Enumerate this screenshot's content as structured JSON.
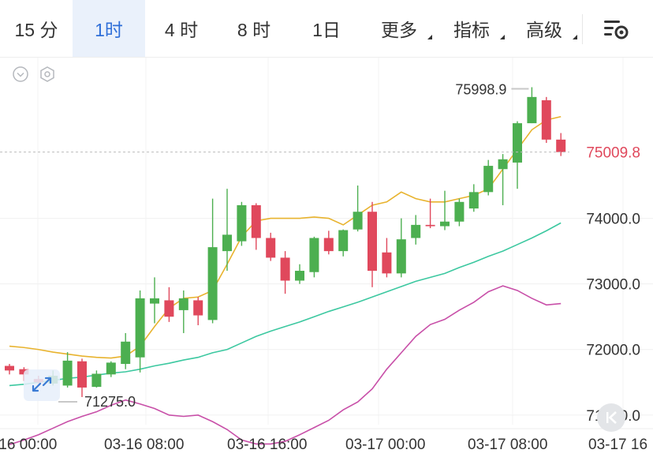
{
  "tabs": [
    {
      "label": "15 分",
      "active": false,
      "has_menu": false
    },
    {
      "label": "1时",
      "active": true,
      "has_menu": false
    },
    {
      "label": "4 时",
      "active": false,
      "has_menu": false
    },
    {
      "label": "8 时",
      "active": false,
      "has_menu": false
    },
    {
      "label": "1日",
      "active": false,
      "has_menu": false
    },
    {
      "label": "更多",
      "active": false,
      "has_menu": true
    },
    {
      "label": "指标",
      "active": false,
      "has_menu": true
    },
    {
      "label": "高级",
      "active": false,
      "has_menu": true
    }
  ],
  "icons": {
    "settings": "chart-settings-icon",
    "collapse": "chevron-double-left-icon",
    "expand": "expand-arrows-icon",
    "toggle": "chevron-down-circle-icon",
    "hexagon": "hexagon-settings-icon"
  },
  "colors": {
    "up": "#4caf50",
    "down": "#e0485c",
    "ma_short": "#e8b32e",
    "ma_mid": "#3cc8a0",
    "ma_long": "#c84fa8",
    "accent": "#2f6fd8",
    "current_price": "#e0485c"
  },
  "chart_data": {
    "type": "candlestick",
    "y_ticks": [
      "74000.0",
      "73000.0",
      "72000.0",
      "71000.0"
    ],
    "y_tick_values": [
      74000,
      73000,
      72000,
      71000
    ],
    "ylim": [
      70300,
      76450
    ],
    "x_ticks": [
      "-16 00:00",
      "03-16 08:00",
      "03-16 16:00",
      "03-17 00:00",
      "03-17 08:00",
      "03-17 16"
    ],
    "high_label": "75998.9",
    "low_label": "71275.0",
    "current_price": "75009.8",
    "current_price_value": 75009.8,
    "candles": [
      {
        "o": 71750,
        "c": 71680,
        "h": 71780,
        "l": 71620
      },
      {
        "o": 71700,
        "c": 71620,
        "h": 71730,
        "l": 71520
      },
      {
        "o": 71550,
        "c": 71500,
        "h": 71600,
        "l": 71480
      },
      {
        "o": 71480,
        "c": 71600,
        "h": 71680,
        "l": 71450
      },
      {
        "o": 71450,
        "c": 71830,
        "h": 71960,
        "l": 71420
      },
      {
        "o": 71820,
        "c": 71420,
        "h": 71860,
        "l": 71275
      },
      {
        "o": 71430,
        "c": 71630,
        "h": 71680,
        "l": 71420
      },
      {
        "o": 71620,
        "c": 71800,
        "h": 71820,
        "l": 71580
      },
      {
        "o": 71780,
        "c": 72120,
        "h": 72250,
        "l": 71700
      },
      {
        "o": 71880,
        "c": 72780,
        "h": 72900,
        "l": 71650
      },
      {
        "o": 72700,
        "c": 72780,
        "h": 73100,
        "l": 72400
      },
      {
        "o": 72750,
        "c": 72500,
        "h": 72950,
        "l": 72420
      },
      {
        "o": 72600,
        "c": 72780,
        "h": 72900,
        "l": 72250
      },
      {
        "o": 72750,
        "c": 72520,
        "h": 72800,
        "l": 72370
      },
      {
        "o": 72450,
        "c": 73560,
        "h": 74300,
        "l": 72400
      },
      {
        "o": 73500,
        "c": 73750,
        "h": 74450,
        "l": 73200
      },
      {
        "o": 73650,
        "c": 74200,
        "h": 74250,
        "l": 73580
      },
      {
        "o": 74200,
        "c": 73700,
        "h": 74230,
        "l": 73520
      },
      {
        "o": 73700,
        "c": 73400,
        "h": 73780,
        "l": 73350
      },
      {
        "o": 73400,
        "c": 73050,
        "h": 73500,
        "l": 72850
      },
      {
        "o": 73050,
        "c": 73200,
        "h": 73300,
        "l": 73000
      },
      {
        "o": 73180,
        "c": 73700,
        "h": 73720,
        "l": 73100
      },
      {
        "o": 73700,
        "c": 73500,
        "h": 73810,
        "l": 73450
      },
      {
        "o": 73500,
        "c": 73820,
        "h": 73830,
        "l": 73420
      },
      {
        "o": 73830,
        "c": 74100,
        "h": 74500,
        "l": 73800
      },
      {
        "o": 74100,
        "c": 73200,
        "h": 74250,
        "l": 72950
      },
      {
        "o": 73480,
        "c": 73160,
        "h": 73700,
        "l": 73100
      },
      {
        "o": 73160,
        "c": 73680,
        "h": 74000,
        "l": 73100
      },
      {
        "o": 73700,
        "c": 73900,
        "h": 74050,
        "l": 73600
      },
      {
        "o": 73900,
        "c": 73880,
        "h": 74300,
        "l": 73850
      },
      {
        "o": 73880,
        "c": 73950,
        "h": 74420,
        "l": 73820
      },
      {
        "o": 73950,
        "c": 74250,
        "h": 74300,
        "l": 73880
      },
      {
        "o": 74150,
        "c": 74400,
        "h": 74520,
        "l": 74100
      },
      {
        "o": 74400,
        "c": 74800,
        "h": 74890,
        "l": 74350
      },
      {
        "o": 74750,
        "c": 74900,
        "h": 74980,
        "l": 74200
      },
      {
        "o": 74850,
        "c": 75450,
        "h": 75480,
        "l": 74450
      },
      {
        "o": 75450,
        "c": 75850,
        "h": 75998.9,
        "l": 75450
      },
      {
        "o": 75800,
        "c": 75200,
        "h": 75850,
        "l": 75150
      },
      {
        "o": 75200,
        "c": 75009.8,
        "h": 75300,
        "l": 74950
      }
    ],
    "ma_short": [
      72050,
      72030,
      72000,
      71960,
      71930,
      71900,
      71880,
      71870,
      71900,
      72050,
      72350,
      72630,
      72780,
      72800,
      72900,
      73300,
      73720,
      73960,
      74000,
      74000,
      74000,
      74020,
      74000,
      73900,
      74050,
      74200,
      74250,
      74400,
      74300,
      74250,
      74250,
      74300,
      74350,
      74450,
      74750,
      75050,
      75350,
      75500,
      75550
    ],
    "ma_mid": [
      71450,
      71470,
      71500,
      71530,
      71560,
      71580,
      71610,
      71640,
      71660,
      71700,
      71750,
      71790,
      71840,
      71880,
      71950,
      72000,
      72100,
      72200,
      72280,
      72350,
      72420,
      72500,
      72580,
      72650,
      72720,
      72800,
      72880,
      72960,
      73040,
      73100,
      73160,
      73250,
      73330,
      73420,
      73500,
      73600,
      73700,
      73810,
      73930
    ],
    "ma_long": [
      70550,
      70620,
      70700,
      70800,
      70900,
      70980,
      71050,
      71150,
      71230,
      71170,
      71100,
      71000,
      70980,
      71000,
      70900,
      70780,
      70620,
      70560,
      70560,
      70600,
      70700,
      70810,
      70920,
      71080,
      71200,
      71400,
      71700,
      71950,
      72200,
      72380,
      72460,
      72600,
      72720,
      72880,
      72970,
      72900,
      72780,
      72680,
      72700
    ]
  }
}
